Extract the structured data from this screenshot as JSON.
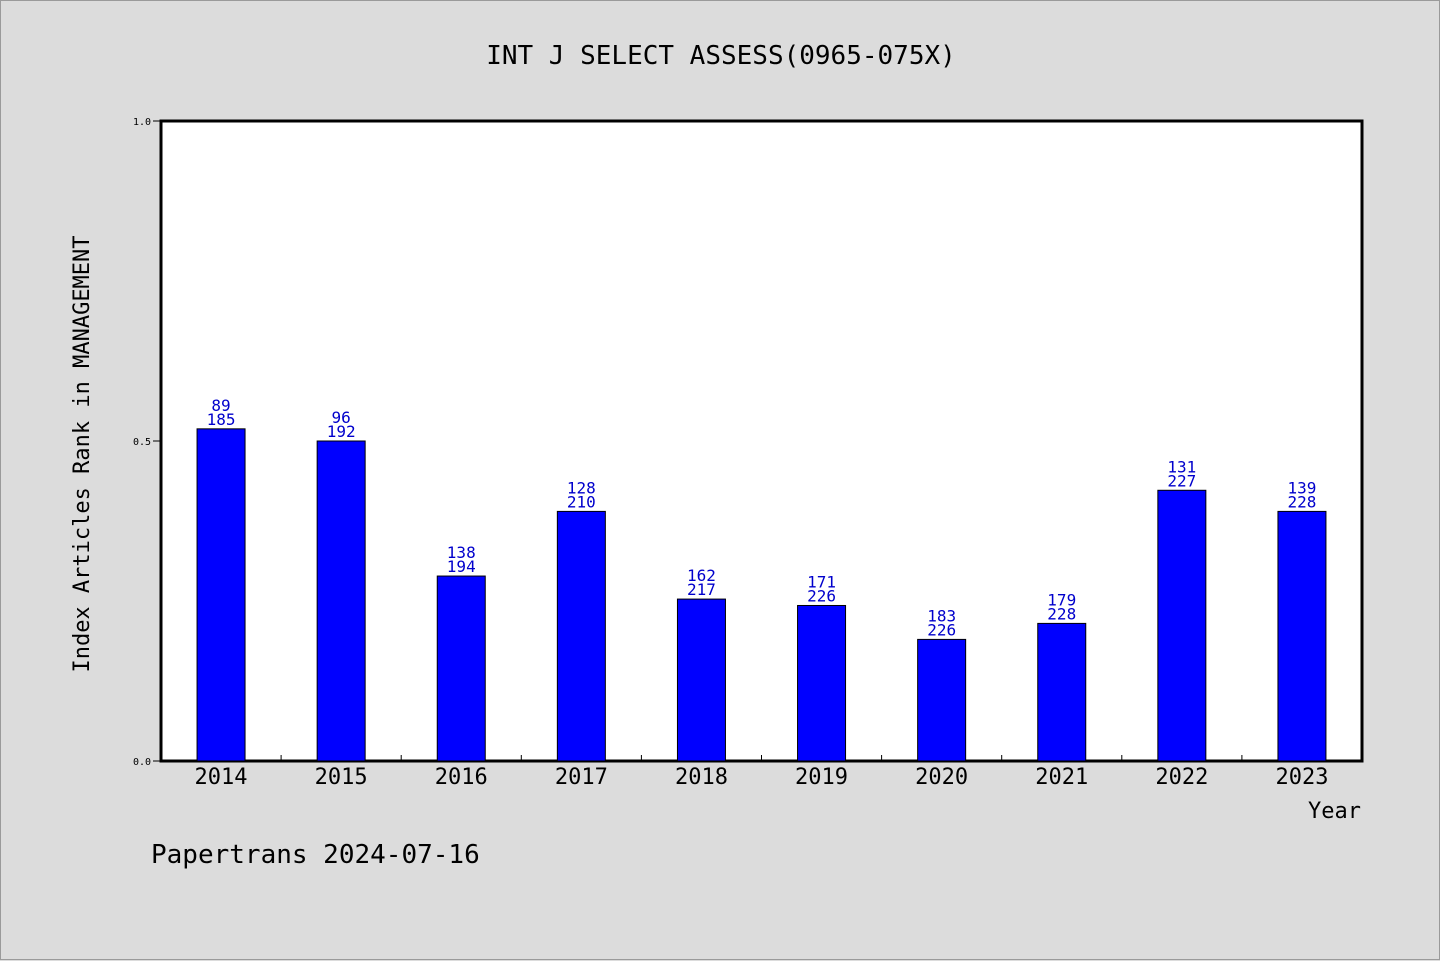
{
  "colors": {
    "background": "#dcdcdc",
    "plot_background": "#ffffff",
    "bar": "#0000ff",
    "bar_label": "#0000cc"
  },
  "footer": "Papertrans 2024-07-16",
  "chart_data": {
    "type": "bar",
    "title": "INT J SELECT ASSESS(0965-075X)",
    "xlabel": "Year",
    "ylabel": "Index Articles Rank in MANAGEMENT",
    "ylim": [
      0,
      1.0
    ],
    "yticks": [
      "0.0",
      "0.5",
      "1.0"
    ],
    "categories": [
      "2014",
      "2015",
      "2016",
      "2017",
      "2018",
      "2019",
      "2020",
      "2021",
      "2022",
      "2023"
    ],
    "values": [
      0.519,
      0.5,
      0.289,
      0.39,
      0.253,
      0.243,
      0.19,
      0.215,
      0.423,
      0.39
    ],
    "rank": [
      89,
      96,
      138,
      128,
      162,
      171,
      183,
      179,
      131,
      139
    ],
    "total": [
      185,
      192,
      194,
      210,
      217,
      226,
      226,
      228,
      227,
      228
    ],
    "grid": false,
    "legend": "none"
  }
}
